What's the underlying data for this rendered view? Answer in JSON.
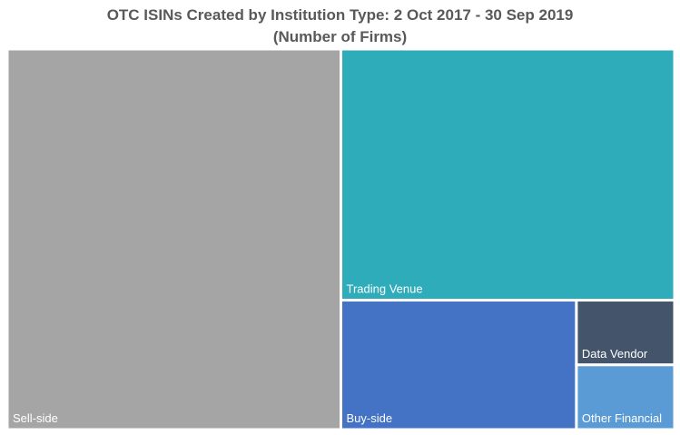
{
  "chart_data": {
    "type": "treemap",
    "title": "OTC ISINs Created by Institution Type: 2 Oct 2017 - 30 Sep 2019",
    "subtitle": "(Number of Firms)",
    "items": [
      {
        "label": "Sell-side",
        "share": 0.5,
        "color": "#a5a5a5"
      },
      {
        "label": "Trading Venue",
        "share": 0.33,
        "color": "#2eacb9"
      },
      {
        "label": "Buy-side",
        "share": 0.12,
        "color": "#4472c4"
      },
      {
        "label": "Data Vendor",
        "share": 0.025,
        "color": "#44546a"
      },
      {
        "label": "Other Financial",
        "share": 0.025,
        "color": "#5b9bd5"
      }
    ]
  }
}
